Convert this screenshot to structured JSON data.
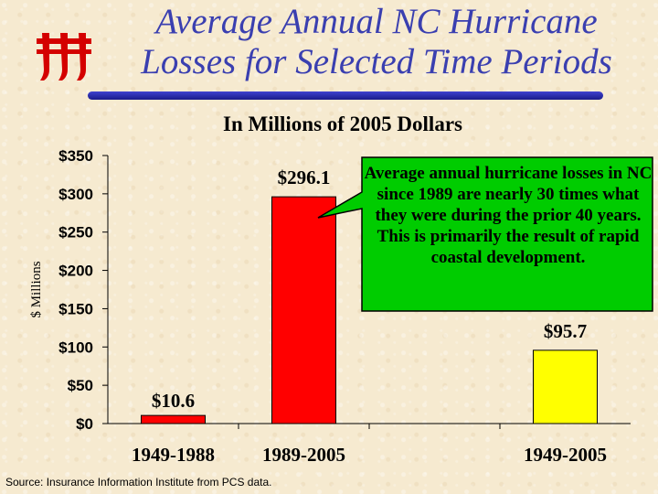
{
  "title_line1": "Average Annual NC Hurricane",
  "title_line2": "Losses for Selected Time Periods",
  "subtitle": "In Millions of 2005 Dollars",
  "callout": "Average annual hurricane losses in NC since 1989 are nearly 30 times what they were during the prior 40 years.  This is primarily the result of rapid coastal development.",
  "source": "Source: Insurance Information Institute from PCS data.",
  "colors": {
    "title": "#3a3fb0",
    "bar_red": "#ff0000",
    "bar_yellow": "#ffff00",
    "callout_fill": "#00cc00",
    "rule": "#2326a8"
  },
  "chart_data": {
    "type": "bar",
    "title": "In Millions of 2005 Dollars",
    "ylabel": "$ Millions",
    "xlabel": "",
    "categories": [
      "1949-1988",
      "1989-2005",
      "1949-2005"
    ],
    "values": [
      10.6,
      296.1,
      95.7
    ],
    "value_labels": [
      "$10.6",
      "$296.1",
      "$95.7"
    ],
    "bar_colors": [
      "#ff0000",
      "#ff0000",
      "#ffff00"
    ],
    "ylim": [
      0,
      350
    ],
    "yticks": [
      0,
      50,
      100,
      150,
      200,
      250,
      300,
      350
    ],
    "ytick_labels": [
      "$0",
      "$50",
      "$100",
      "$150",
      "$200",
      "$250",
      "$300",
      "$350"
    ],
    "grid": false,
    "legend": "none"
  }
}
